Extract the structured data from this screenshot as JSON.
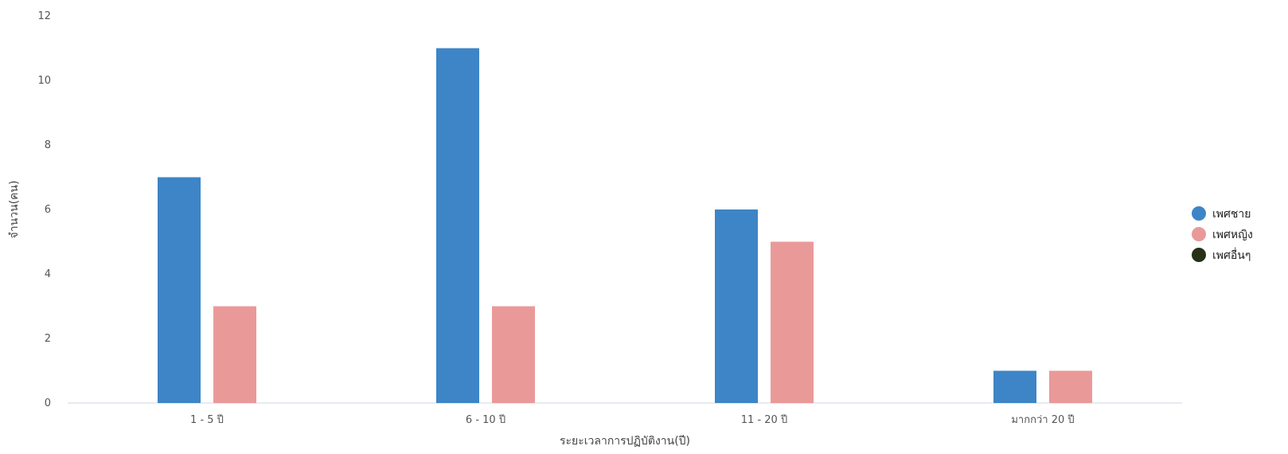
{
  "chart_data": {
    "type": "bar",
    "title": "",
    "xlabel": "ระยะเวลาการปฏิบัติงาน(ปี)",
    "ylabel": "จำนวน(คน)",
    "ylim": [
      0,
      12
    ],
    "yticks": [
      0,
      2,
      4,
      6,
      8,
      10,
      12
    ],
    "categories": [
      "1 - 5 ปี",
      "6 - 10 ปี",
      "11 - 20 ปี",
      "มากกว่า 20 ปี"
    ],
    "series": [
      {
        "name": "เพศชาย",
        "color": "#3d85c6",
        "values": [
          7,
          11,
          6,
          1
        ]
      },
      {
        "name": "เพศหญิง",
        "color": "#ea9999",
        "values": [
          3,
          3,
          5,
          1
        ]
      },
      {
        "name": "เพศอื่นๆ",
        "color": "#263117",
        "values": [
          0,
          0,
          0,
          0
        ]
      }
    ],
    "grid": false,
    "legend": "right"
  }
}
